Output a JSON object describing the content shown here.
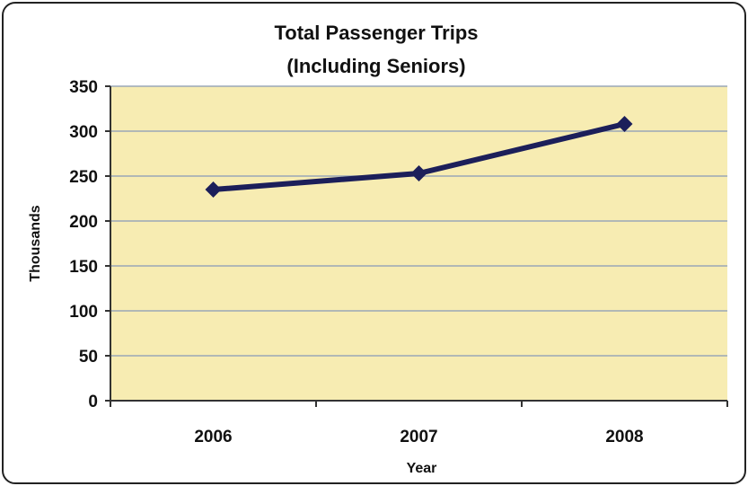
{
  "chart_data": {
    "type": "line",
    "title_lines": [
      "Total Passenger Trips",
      "(Including Seniors)"
    ],
    "xlabel": "Year",
    "ylabel": "Thousands",
    "categories": [
      "2006",
      "2007",
      "2008"
    ],
    "series": [
      {
        "values": [
          235,
          253,
          308
        ]
      }
    ],
    "ylim": [
      0,
      350
    ],
    "yticks": [
      0,
      50,
      100,
      150,
      200,
      250,
      300,
      350
    ],
    "grid": true,
    "legend": "none",
    "colors": {
      "plot_background": "#f7ecb2",
      "line": "#1c1f5a",
      "gridline": "#9aa7b8",
      "frame": "#333333"
    }
  }
}
